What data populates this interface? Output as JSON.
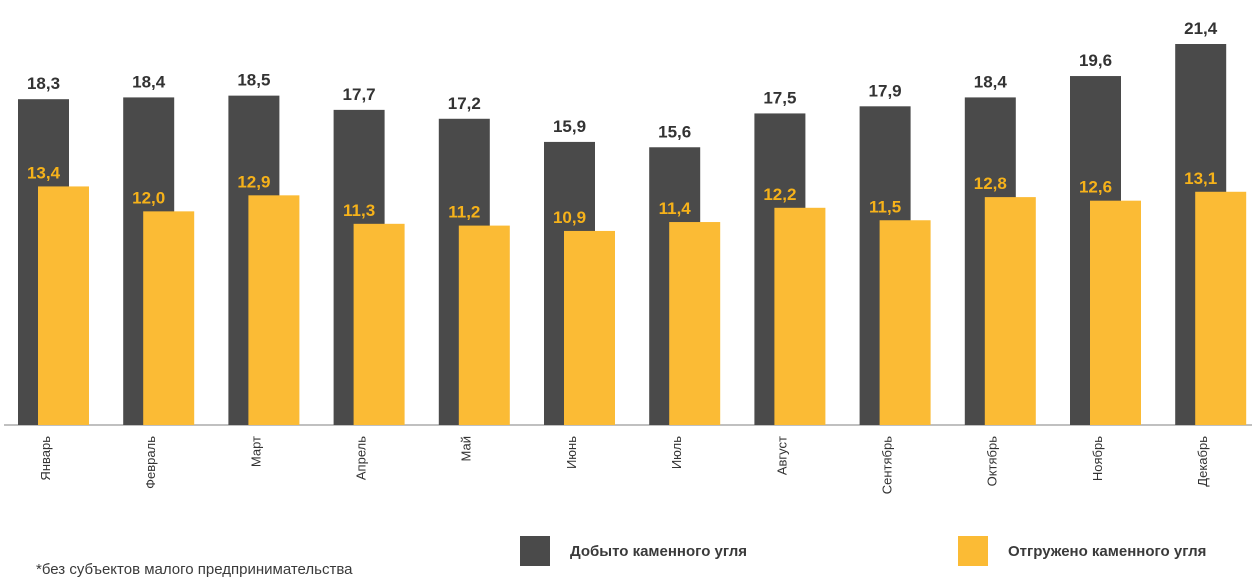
{
  "chart_data": {
    "type": "bar",
    "categories": [
      "Январь",
      "Февраль",
      "Март",
      "Апрель",
      "Май",
      "Июнь",
      "Июль",
      "Август",
      "Сентябрь",
      "Октябрь",
      "Ноябрь",
      "Декабрь"
    ],
    "series": [
      {
        "name": "Добыто каменного угля",
        "color": "#4a4a4a",
        "label_color": "#333333",
        "values": [
          18.3,
          18.4,
          18.5,
          17.7,
          17.2,
          15.9,
          15.6,
          17.5,
          17.9,
          18.4,
          19.6,
          21.4
        ],
        "labels": [
          "18,3",
          "18,4",
          "18,5",
          "17,7",
          "17,2",
          "15,9",
          "15,6",
          "17,5",
          "17,9",
          "18,4",
          "19,6",
          "21,4"
        ]
      },
      {
        "name": "Отгружено каменного угля",
        "color": "#fbbb35",
        "label_color": "#f6b21a",
        "values": [
          13.4,
          12.0,
          12.9,
          11.3,
          11.2,
          10.9,
          11.4,
          12.2,
          11.5,
          12.8,
          12.6,
          13.1
        ],
        "labels": [
          "13,4",
          "12,0",
          "12,9",
          "11,3",
          "11,2",
          "10,9",
          "11,4",
          "12,2",
          "11,5",
          "12,8",
          "12,6",
          "13,1"
        ]
      }
    ],
    "ylim": [
      0,
      21.4
    ],
    "grid": false,
    "legend_position": "bottom"
  },
  "footnote": "*без субъектов малого предпринимательства"
}
